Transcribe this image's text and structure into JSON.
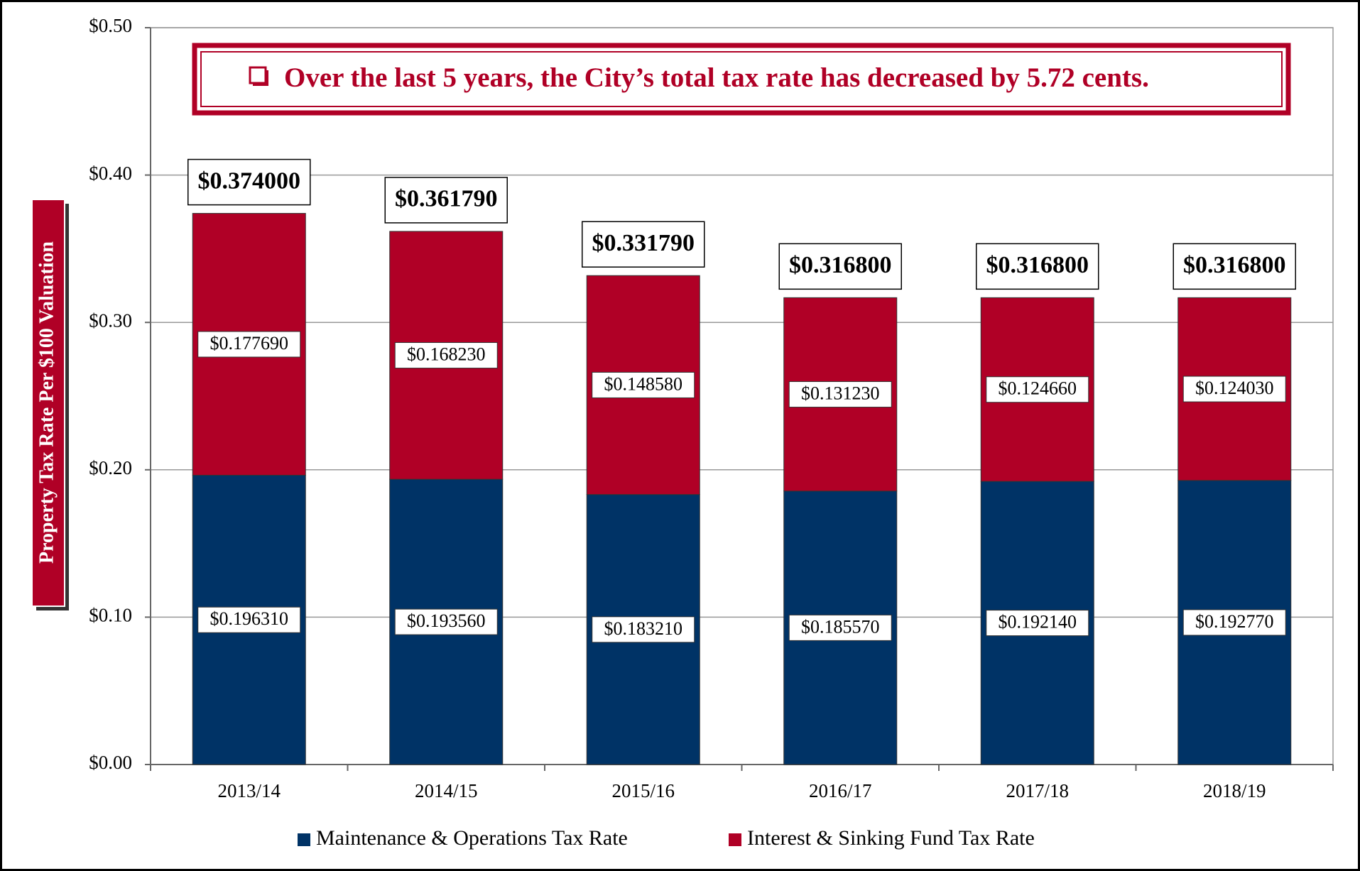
{
  "chart_data": {
    "type": "stacked_bar",
    "y_label": "Property Tax Rate Per $100 Valuation",
    "annotation": "Over the last 5 years, the City’s total tax rate has decreased by 5.72 cents.",
    "categories": [
      "2013/14",
      "2014/15",
      "2015/16",
      "2016/17",
      "2017/18",
      "2018/19"
    ],
    "series": [
      {
        "name": "Maintenance & Operations Tax Rate",
        "color": "#003366",
        "values": [
          0.19631,
          0.19356,
          0.18321,
          0.18557,
          0.19214,
          0.19277
        ],
        "value_labels": [
          "$0.196310",
          "$0.193560",
          "$0.183210",
          "$0.185570",
          "$0.192140",
          "$0.192770"
        ]
      },
      {
        "name": "Interest & Sinking Fund Tax Rate",
        "color": "#b00026",
        "values": [
          0.17769,
          0.16823,
          0.14858,
          0.13123,
          0.12466,
          0.12403
        ],
        "value_labels": [
          "$0.177690",
          "$0.168230",
          "$0.148580",
          "$0.131230",
          "$0.124660",
          "$0.124030"
        ]
      }
    ],
    "totals": [
      0.374,
      0.36179,
      0.33179,
      0.3168,
      0.3168,
      0.3168
    ],
    "total_labels": [
      "$0.374000",
      "$0.361790",
      "$0.331790",
      "$0.316800",
      "$0.316800",
      "$0.316800"
    ],
    "ylim": [
      0,
      0.5
    ],
    "yticks": [
      {
        "value": 0,
        "label": "$0.00"
      },
      {
        "value": 0.1,
        "label": "$0.10"
      },
      {
        "value": 0.2,
        "label": "$0.20"
      },
      {
        "value": 0.3,
        "label": "$0.30"
      },
      {
        "value": 0.4,
        "label": "$0.40"
      },
      {
        "value": 0.5,
        "label": "$0.50"
      }
    ],
    "grid": true,
    "legend": "bottom"
  }
}
